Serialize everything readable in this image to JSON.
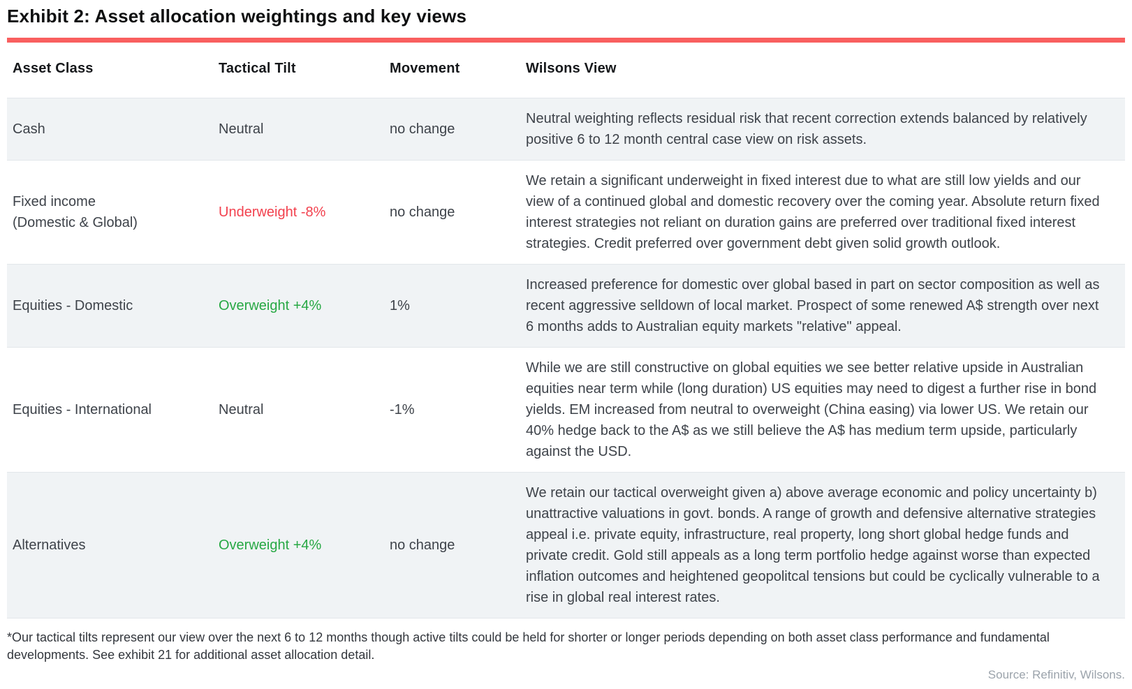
{
  "title": "Exhibit 2: Asset allocation weightings and key views",
  "colors": {
    "accent_bar": "#F95F5F",
    "underweight_text": "#F2414E",
    "overweight_text": "#27A844",
    "row_alt_background": "#F0F3F5",
    "body_text": "#3E434A",
    "source_text": "#9BA3AB"
  },
  "table": {
    "columns": [
      "Asset Class",
      "Tactical Tilt",
      "Movement",
      "Wilsons View"
    ],
    "rows": [
      {
        "asset_class": "Cash",
        "tilt": "Neutral",
        "tilt_type": "neutral",
        "movement": "no change",
        "view": "Neutral weighting reflects residual risk that recent correction extends balanced by relatively positive 6 to 12 month central case view on risk assets."
      },
      {
        "asset_class": "Fixed income\n(Domestic & Global)",
        "tilt": "Underweight -8%",
        "tilt_type": "underweight",
        "movement": "no change",
        "view": "We retain a significant underweight in fixed interest due to what are still low yields and our view of a continued global and domestic recovery over the coming year. Absolute return fixed interest strategies not reliant on duration gains  are preferred over traditional fixed interest strategies. Credit preferred over government debt given solid growth outlook."
      },
      {
        "asset_class": "Equities - Domestic",
        "tilt": "Overweight +4%",
        "tilt_type": "overweight",
        "movement": "1%",
        "view": "Increased preference for domestic over global based in part on sector composition as well as recent aggressive selldown of local market. Prospect of some renewed A$ strength over next 6 months adds to Australian equity markets \"relative\" appeal."
      },
      {
        "asset_class": "Equities - International",
        "tilt": "Neutral",
        "tilt_type": "neutral",
        "movement": "-1%",
        "view": "While we are still constructive on global equities we see better relative upside in Australian equities near term while (long duration) US equities may need to digest a further rise in bond yields. EM increased from neutral to overweight (China easing) via lower US. We retain our 40% hedge back to the A$ as we still believe the A$ has medium term upside, particularly against the USD."
      },
      {
        "asset_class": "Alternatives",
        "tilt": "Overweight +4%",
        "tilt_type": "overweight",
        "movement": "no change",
        "view": "We retain our tactical overweight  given a) above average economic and policy uncertainty b) unattractive valuations in govt. bonds.  A range of growth and defensive alternative strategies appeal i.e. private equity, infrastructure, real property, long short global hedge funds and private credit. Gold still appeals as a long term portfolio hedge against worse than expected inflation outcomes and heightened geopolitcal tensions but could be cyclically vulnerable to a rise in global real interest rates."
      }
    ]
  },
  "footnote": "*Our tactical tilts represent our view over the next 6 to 12 months though active tilts could be held for shorter or longer periods depending on both asset class performance and fundamental developments. See exhibit 21 for additional asset allocation detail.",
  "source": "Source: Refinitiv, Wilsons."
}
